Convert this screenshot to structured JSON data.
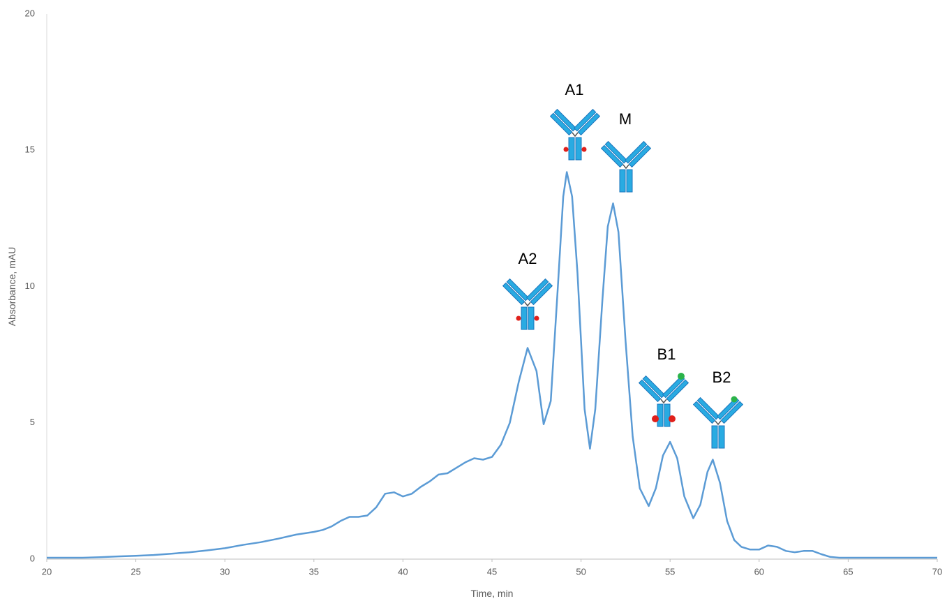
{
  "chart_data": {
    "type": "line",
    "x_label": "Time, min",
    "y_label": "Absorbance, mAU",
    "annotations": [
      "A2",
      "A1",
      "M",
      "B1",
      "B2"
    ],
    "xlim": [
      20,
      70
    ],
    "xticks": [
      20,
      25,
      30,
      35,
      40,
      45,
      50,
      55,
      60,
      65,
      70
    ],
    "ylim": [
      0,
      20
    ],
    "yticks": [
      0,
      5,
      10,
      15,
      20
    ],
    "grid": false,
    "x": [
      20,
      21,
      22,
      23,
      24,
      25,
      26,
      27,
      28,
      29,
      30,
      31,
      32,
      33,
      34,
      35,
      35.5,
      36,
      36.5,
      37,
      37.5,
      38,
      38.5,
      39,
      39.5,
      40,
      40.5,
      41,
      41.5,
      42,
      42.5,
      43,
      43.5,
      44,
      44.5,
      45,
      45.5,
      46,
      46.5,
      47,
      47.5,
      47.9,
      48.3,
      48.7,
      49,
      49.2,
      49.5,
      49.8,
      50.2,
      50.5,
      50.8,
      51.2,
      51.5,
      51.8,
      52.1,
      52.5,
      52.9,
      53.3,
      53.8,
      54.2,
      54.6,
      55,
      55.4,
      55.8,
      56.3,
      56.7,
      57.1,
      57.4,
      57.8,
      58.2,
      58.6,
      59,
      59.5,
      60,
      60.5,
      61,
      61.5,
      62,
      62.5,
      63,
      63.5,
      64,
      64.5,
      65,
      66,
      67,
      68,
      69,
      70
    ],
    "series": [
      {
        "name": "Absorbance",
        "color": "#5b9bd5",
        "values": [
          0.05,
          0.05,
          0.05,
          0.07,
          0.1,
          0.12,
          0.15,
          0.2,
          0.25,
          0.32,
          0.4,
          0.52,
          0.62,
          0.75,
          0.9,
          1.0,
          1.07,
          1.2,
          1.4,
          1.55,
          1.55,
          1.6,
          1.9,
          2.4,
          2.45,
          2.3,
          2.4,
          2.65,
          2.85,
          3.1,
          3.15,
          3.35,
          3.55,
          3.7,
          3.65,
          3.75,
          4.2,
          5.0,
          6.5,
          7.75,
          6.9,
          4.95,
          5.8,
          10.0,
          13.3,
          14.2,
          13.3,
          10.5,
          5.5,
          4.05,
          5.5,
          9.5,
          12.2,
          13.05,
          12.0,
          8.0,
          4.5,
          2.6,
          1.95,
          2.6,
          3.8,
          4.3,
          3.7,
          2.3,
          1.5,
          2.0,
          3.2,
          3.65,
          2.8,
          1.4,
          0.7,
          0.45,
          0.35,
          0.35,
          0.5,
          0.45,
          0.3,
          0.25,
          0.3,
          0.3,
          0.18,
          0.08,
          0.05,
          0.05,
          0.05,
          0.05,
          0.05,
          0.05,
          0.05
        ]
      }
    ]
  }
}
